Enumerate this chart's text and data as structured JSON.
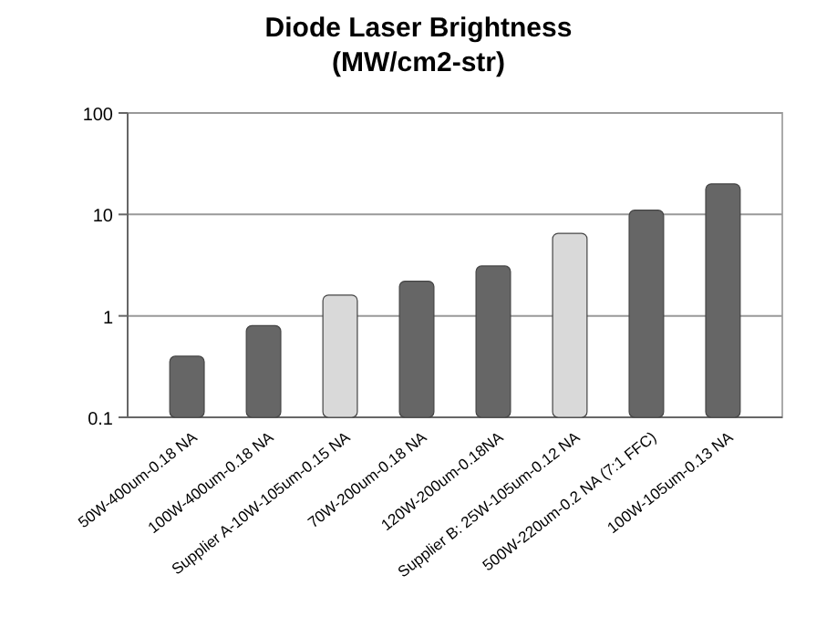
{
  "chart_data": {
    "type": "bar",
    "title": "Diode Laser Brightness\n(MW/cm2-str)",
    "categories": [
      "50W-400um-0.18 NA",
      "100W-400um-0.18 NA",
      "Supplier A-10W-105um-0.15 NA",
      "70W-200um-0.18 NA",
      "120W-200um-0.18NA",
      "Supplier B: 25W-105um-0.12 NA",
      "500W-220um-0.2 NA (7:1 FFC)",
      "100W-105um-0.13 NA"
    ],
    "values": [
      0.4,
      0.8,
      1.6,
      2.2,
      3.1,
      6.5,
      11,
      20
    ],
    "colors": [
      "#666666",
      "#666666",
      "#d9d9d9",
      "#666666",
      "#666666",
      "#d9d9d9",
      "#666666",
      "#666666"
    ],
    "log": true,
    "ylim": [
      0.1,
      100
    ],
    "yticks": [
      0.1,
      1,
      10,
      100
    ],
    "grid": true
  }
}
